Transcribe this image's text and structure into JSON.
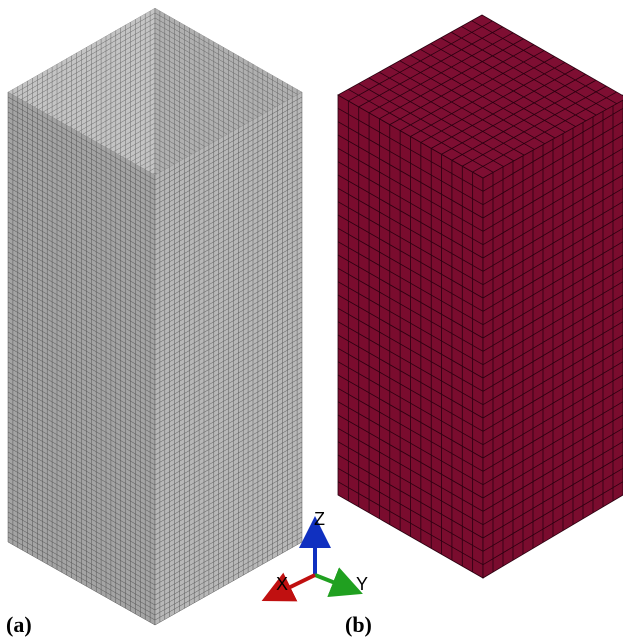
{
  "panels": [
    {
      "label": "(a)"
    },
    {
      "label": "(b)"
    }
  ],
  "axes": {
    "z": "Z",
    "x": "X",
    "y": "Y"
  }
}
